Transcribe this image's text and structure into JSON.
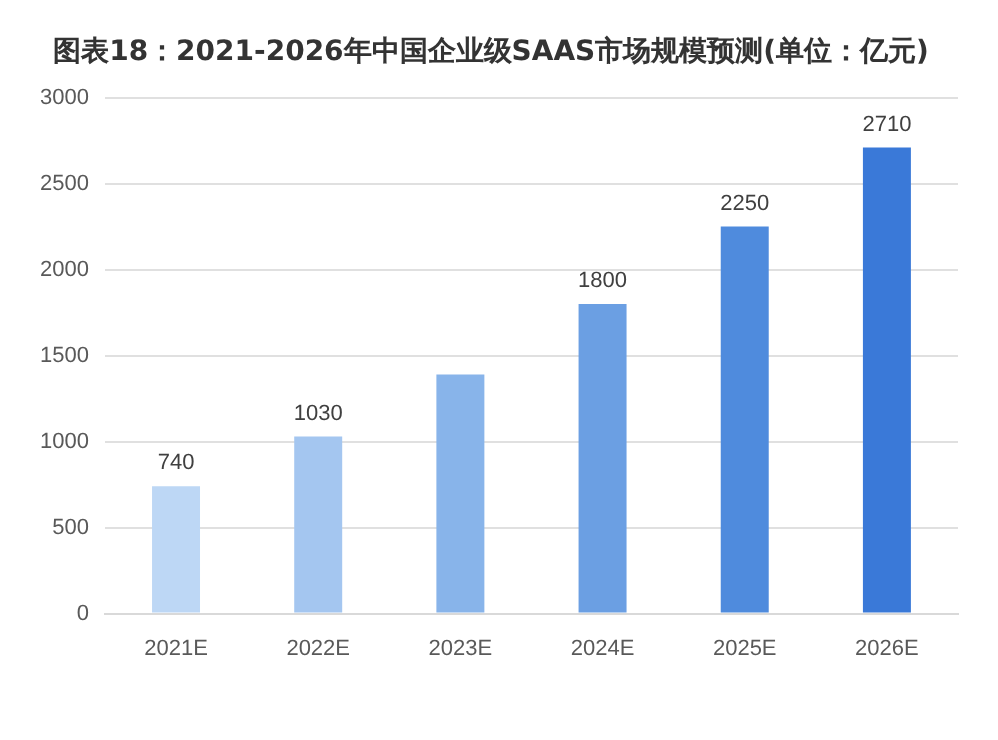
{
  "chart_data": {
    "type": "bar",
    "title": "图表18：2021-2026年中国企业级SAAS市场规模预测(单位：亿元)",
    "categories": [
      "2021E",
      "2022E",
      "2023E",
      "2024E",
      "2025E",
      "2026E"
    ],
    "values": [
      740,
      1030,
      1390,
      1800,
      2250,
      2710
    ],
    "value_labels": [
      "740",
      "1030",
      null,
      "1800",
      "2250",
      "2710"
    ],
    "colors": [
      "#bdd7f5",
      "#a4c6f0",
      "#88b4ea",
      "#6b9fe3",
      "#4f8bdd",
      "#3a79d8"
    ],
    "ylim": [
      0,
      3000
    ],
    "yticks": [
      0,
      500,
      1000,
      1500,
      2000,
      2500,
      3000
    ],
    "grid": "y",
    "legend": false
  }
}
